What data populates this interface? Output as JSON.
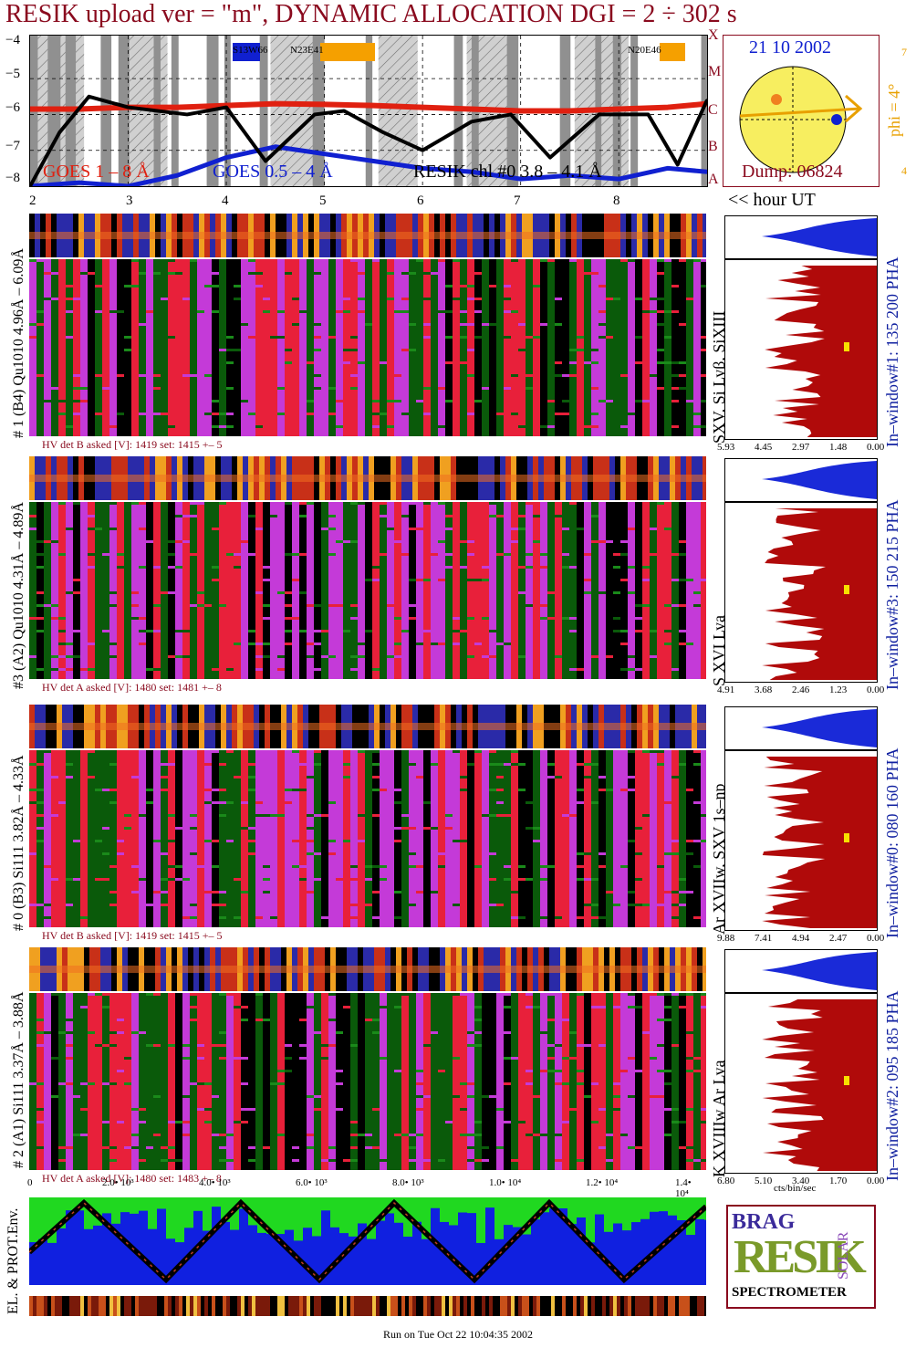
{
  "title": "RESIK upload ver = \"m\", DYNAMIC ALLOCATION  DGI =   2 ÷ 302 s",
  "colors": {
    "title": "#8a0a1e",
    "goes_long": "#e02010",
    "goes_short": "#1020d0",
    "resik": "#000000",
    "spec_red": "#e8203a",
    "spec_green": "#1a8a1a",
    "spec_magenta": "#c43ad8",
    "spec_dark": "#0a5a0a",
    "hist_blue": "#1a2ad8",
    "hist_red": "#b00a0a",
    "sun": "#f7ee60",
    "phi": "#e8a000",
    "env_blue": "#1020e0",
    "env_green": "#20d820"
  },
  "lightcurve": {
    "y_ticks": [
      "−4",
      "−5",
      "−6",
      "−7",
      "−8"
    ],
    "flare_classes": [
      "X",
      "M",
      "C",
      "B",
      "A"
    ],
    "x_ticks": [
      "2",
      "3",
      "4",
      "5",
      "6",
      "7",
      "8"
    ],
    "legend_goes_long": "GOES 1 – 8 Å",
    "legend_goes_short": "GOES 0.5 – 4 Å",
    "legend_resik": "RESIK  chl #0  3.8 – 4.1 Å",
    "regions": [
      "S13W66",
      "N23E41",
      "N20E46"
    ],
    "hour_label": "<< hour UT"
  },
  "sun": {
    "date": "21 10 2002",
    "dump": "Dump: 06824",
    "phi": "phi =  4°",
    "phi_top": "7",
    "phi_bottom": "4"
  },
  "channels": [
    {
      "left_label": "# 1 (B4) Qu1010 4.96Å – 6.09Å",
      "lines_label": "SXV, Si Lyβ, SiXIII",
      "window_label": "In–window#1:  135 200 PHA",
      "hv": "HV det B asked [V]:  1419  set:  1415  +–   5",
      "hist_ticks": [
        "5.93",
        "4.45",
        "2.97",
        "1.48",
        "0.00"
      ]
    },
    {
      "left_label": "#3 (A2) Qu1010  4.31Å – 4.89Å",
      "lines_label": "S XVI Lya",
      "window_label": "In–window#3:  150 215 PHA",
      "hv": "HV det A asked [V]:  1480  set:  1481  +–   8",
      "hist_ticks": [
        "4.91",
        "3.68",
        "2.46",
        "1.23",
        "0.00"
      ]
    },
    {
      "left_label": "# 0 (B3) Si111  3.82Å – 4.33Å",
      "lines_label": "Ar XVIIw,  SXV 1s–np",
      "window_label": "In–window#0:  080 160 PHA",
      "hv": "HV det B asked [V]:  1419  set:  1415  +–   5",
      "hist_ticks": [
        "9.88",
        "7.41",
        "4.94",
        "2.47",
        "0.00"
      ]
    },
    {
      "left_label": "# 2 (A1) Si111  3.37Å –  3.88Å",
      "lines_label": "K XVIIIw  Ar Lya",
      "window_label": "In–window#2:  095 185 PHA",
      "hv": "HV det A asked [V]:  1480  set:  1483  +–   8",
      "hist_ticks": [
        "6.80",
        "5.10",
        "3.40",
        "1.70",
        "0.00"
      ]
    }
  ],
  "hist_xlabel": "cts/bin/sec",
  "bottom_axis_ticks": [
    "0",
    "2.0• 10³",
    "4.0• 10³",
    "6.0• 10³",
    "8.0• 10³",
    "1.0• 10⁴",
    "1.2• 10⁴",
    "1.4• 10⁴"
  ],
  "env_label": "EL. & PROT.Env.",
  "logo": {
    "line1": "BRAG",
    "main": "RESIK",
    "side": "SOLAR",
    "bottom": "SPECTROMETER"
  },
  "footer": "Run on Tue Oct 22 10:04:35 2002",
  "chart_data": {
    "type": "line",
    "title": "RESIK upload ver = \"m\", DYNAMIC ALLOCATION  DGI =   2 ÷ 302 s",
    "xlabel": "hour UT",
    "ylabel": "",
    "xlim": [
      2,
      8.9
    ],
    "ylim": [
      -8,
      -3.8
    ],
    "series": [
      {
        "name": "GOES 1 – 8 Å",
        "x": [
          2.0,
          2.5,
          3.0,
          3.5,
          4.0,
          4.5,
          5.0,
          5.5,
          6.0,
          6.5,
          7.0,
          7.5,
          8.0,
          8.5,
          8.9
        ],
        "values": [
          -5.85,
          -5.85,
          -5.8,
          -5.8,
          -5.75,
          -5.7,
          -5.72,
          -5.75,
          -5.8,
          -5.85,
          -5.9,
          -5.9,
          -5.85,
          -5.8,
          -5.7
        ]
      },
      {
        "name": "GOES 0.5 – 4 Å",
        "x": [
          2.0,
          2.5,
          3.0,
          3.5,
          4.0,
          4.5,
          5.0,
          5.5,
          6.0,
          6.5,
          7.0,
          7.5,
          8.0,
          8.5,
          8.9
        ],
        "values": [
          -8.0,
          -7.9,
          -8.0,
          -7.7,
          -7.2,
          -6.9,
          -7.1,
          -7.3,
          -7.5,
          -7.6,
          -7.8,
          -7.7,
          -7.8,
          -7.5,
          -7.6
        ]
      },
      {
        "name": "RESIK  chl #0  3.8 – 4.1 Å",
        "x": [
          2.0,
          2.3,
          2.6,
          3.0,
          3.6,
          4.0,
          4.4,
          4.9,
          5.2,
          5.6,
          6.0,
          6.5,
          6.9,
          7.3,
          7.8,
          8.3,
          8.6,
          8.9
        ],
        "values": [
          -8.0,
          -6.5,
          -5.5,
          -5.8,
          -6.0,
          -5.8,
          -7.3,
          -6.0,
          -5.9,
          -6.5,
          -7.0,
          -6.2,
          -6.0,
          -7.2,
          -6.0,
          -6.0,
          -7.4,
          -5.6
        ]
      }
    ]
  }
}
